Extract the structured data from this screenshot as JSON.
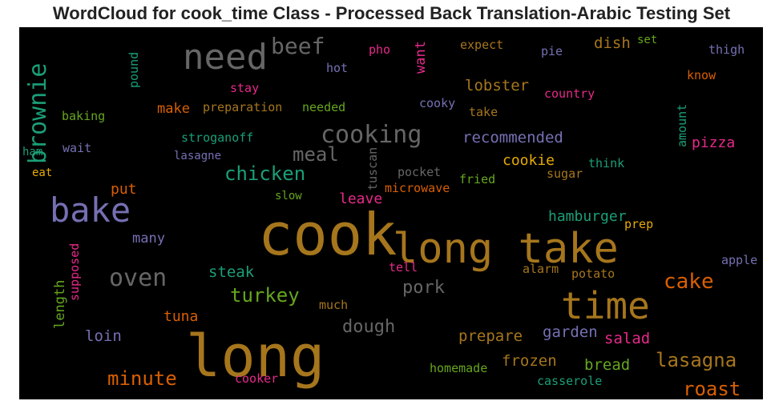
{
  "chart_data": {
    "type": "wordcloud",
    "title": "WordCloud for cook_time Class - Processed Back Translation-Arabic Testing Set",
    "background": "#000000",
    "palette": {
      "brown": "#a6761d",
      "gray": "#666666",
      "purple": "#7570b3",
      "green": "#1b9e77",
      "olive": "#66a61e",
      "pink": "#e7298a",
      "orange": "#d95f02",
      "gold": "#e6ab02"
    },
    "words": [
      {
        "text": "cook",
        "color": "brown"
      },
      {
        "text": "long",
        "color": "brown"
      },
      {
        "text": "long take",
        "color": "brown"
      },
      {
        "text": "time",
        "color": "brown"
      },
      {
        "text": "bake",
        "color": "purple"
      },
      {
        "text": "need",
        "color": "gray"
      },
      {
        "text": "brownie",
        "color": "green"
      },
      {
        "text": "cooking",
        "color": "gray"
      },
      {
        "text": "oven",
        "color": "gray"
      },
      {
        "text": "beef",
        "color": "gray"
      },
      {
        "text": "chicken",
        "color": "green"
      },
      {
        "text": "minute",
        "color": "orange"
      },
      {
        "text": "cake",
        "color": "orange"
      },
      {
        "text": "meal",
        "color": "gray"
      },
      {
        "text": "turkey",
        "color": "olive"
      },
      {
        "text": "lasagna",
        "color": "brown"
      },
      {
        "text": "roast",
        "color": "orange"
      },
      {
        "text": "dough",
        "color": "gray"
      },
      {
        "text": "pork",
        "color": "gray"
      },
      {
        "text": "recommended",
        "color": "purple"
      },
      {
        "text": "lobster",
        "color": "brown"
      },
      {
        "text": "cookie",
        "color": "gold"
      },
      {
        "text": "pizza",
        "color": "pink"
      },
      {
        "text": "hamburger",
        "color": "green"
      },
      {
        "text": "prepare",
        "color": "brown"
      },
      {
        "text": "frozen",
        "color": "brown"
      },
      {
        "text": "bread",
        "color": "olive"
      },
      {
        "text": "steak",
        "color": "green"
      },
      {
        "text": "garden",
        "color": "purple"
      },
      {
        "text": "salad",
        "color": "pink"
      },
      {
        "text": "dish",
        "color": "brown"
      },
      {
        "text": "leave",
        "color": "pink"
      },
      {
        "text": "loin",
        "color": "purple"
      },
      {
        "text": "tuna",
        "color": "orange"
      },
      {
        "text": "many",
        "color": "purple"
      },
      {
        "text": "put",
        "color": "orange"
      },
      {
        "text": "make",
        "color": "orange"
      },
      {
        "text": "want",
        "color": "pink"
      },
      {
        "text": "length",
        "color": "olive"
      },
      {
        "text": "preparation",
        "color": "brown"
      },
      {
        "text": "stroganoff",
        "color": "green"
      },
      {
        "text": "needed",
        "color": "olive"
      },
      {
        "text": "country",
        "color": "pink"
      },
      {
        "text": "casserole",
        "color": "green"
      },
      {
        "text": "homemade",
        "color": "olive"
      },
      {
        "text": "microwave",
        "color": "orange"
      },
      {
        "text": "pocket",
        "color": "gray"
      },
      {
        "text": "fried",
        "color": "olive"
      },
      {
        "text": "sugar",
        "color": "brown"
      },
      {
        "text": "think",
        "color": "green"
      },
      {
        "text": "prep",
        "color": "gold"
      },
      {
        "text": "alarm",
        "color": "brown"
      },
      {
        "text": "potato",
        "color": "brown"
      },
      {
        "text": "apple",
        "color": "purple"
      },
      {
        "text": "tell",
        "color": "pink"
      },
      {
        "text": "much",
        "color": "brown"
      },
      {
        "text": "cooker",
        "color": "pink"
      },
      {
        "text": "baking",
        "color": "olive"
      },
      {
        "text": "wait",
        "color": "purple"
      },
      {
        "text": "ham",
        "color": "green"
      },
      {
        "text": "eat",
        "color": "gold"
      },
      {
        "text": "lasagne",
        "color": "purple"
      },
      {
        "text": "slow",
        "color": "olive"
      },
      {
        "text": "tuscan",
        "color": "gray"
      },
      {
        "text": "cooky",
        "color": "purple"
      },
      {
        "text": "take",
        "color": "brown"
      },
      {
        "text": "stay",
        "color": "pink"
      },
      {
        "text": "hot",
        "color": "purple"
      },
      {
        "text": "pho",
        "color": "pink"
      },
      {
        "text": "expect",
        "color": "brown"
      },
      {
        "text": "pie",
        "color": "purple"
      },
      {
        "text": "set",
        "color": "olive"
      },
      {
        "text": "thigh",
        "color": "purple"
      },
      {
        "text": "know",
        "color": "orange"
      },
      {
        "text": "amount",
        "color": "green"
      },
      {
        "text": "pound",
        "color": "green"
      },
      {
        "text": "supposed",
        "color": "pink"
      }
    ]
  }
}
